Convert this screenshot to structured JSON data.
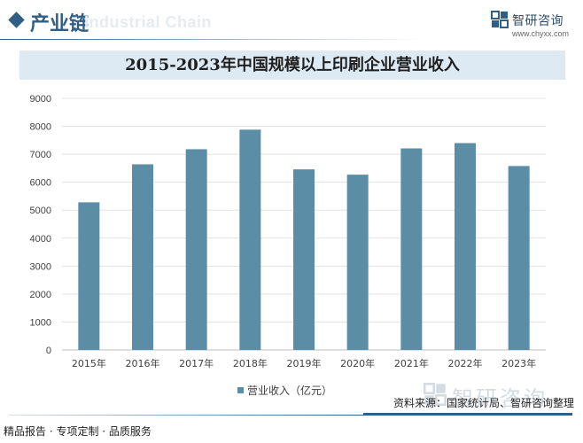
{
  "header": {
    "section_title": "产业链",
    "section_subtitle": "Industrial Chain",
    "brand_name": "智研咨询",
    "brand_url": "www.chyxx.com"
  },
  "chart_data": {
    "type": "bar",
    "title": "2015-2023年中国规模以上印刷企业营业收入",
    "categories": [
      "2015年",
      "2016年",
      "2017年",
      "2018年",
      "2019年",
      "2020年",
      "2021年",
      "2022年",
      "2023年"
    ],
    "series": [
      {
        "name": "营业收入（亿元）",
        "values": [
          5280,
          6640,
          7180,
          7880,
          6460,
          6270,
          7210,
          7400,
          6580
        ]
      }
    ],
    "ylim": [
      0,
      9000
    ],
    "yticks": [
      0,
      1000,
      2000,
      3000,
      4000,
      5000,
      6000,
      7000,
      8000,
      9000
    ],
    "grid": true,
    "legend_position": "bottom-center",
    "bar_color": "#5b8ea6",
    "xlabel": "",
    "ylabel": ""
  },
  "footer": {
    "left": "精品报告 · 专项定制 · 品质服务",
    "source": "资料来源：国家统计局、智研咨询整理",
    "watermark_brand": "智研咨询"
  },
  "colors": {
    "accent": "#2f5e86",
    "bar": "#5b8ea6",
    "title_bg": "#ddeaf3"
  }
}
